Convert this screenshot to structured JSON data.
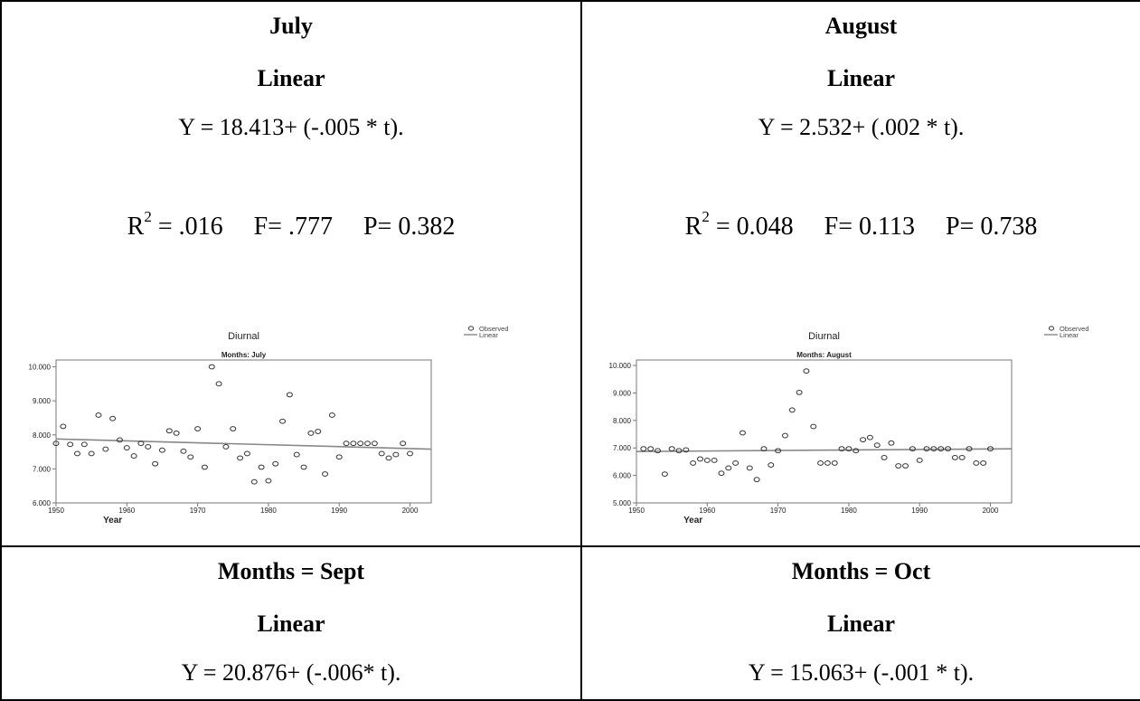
{
  "panels": [
    {
      "month": "July",
      "model": "Linear",
      "equation": "Y = 18.413+ (-.005 * t).",
      "r2_label": "R",
      "r2_sup": "2",
      "r2_value": " = .016",
      "f_stat": "F= .777",
      "p_value": "P= 0.382"
    },
    {
      "month": "August",
      "model": "Linear",
      "equation": "Y = 2.532+ (.002 * t).",
      "r2_label": "R",
      "r2_sup": "2",
      "r2_value": " = 0.048",
      "f_stat": "F= 0.113",
      "p_value": "P= 0.738"
    },
    {
      "month": "Months = Sept",
      "model": "Linear",
      "equation": "Y = 20.876+ (-.006* t)."
    },
    {
      "month": "Months = Oct",
      "model": "Linear",
      "equation": "Y = 15.063+ (-.001 * t)."
    }
  ],
  "chart_data": [
    {
      "type": "scatter",
      "title": "Diurnal",
      "subtitle": "Months: July",
      "xlabel": "Year",
      "ylabel": "",
      "xlim": [
        1950,
        2003
      ],
      "ylim": [
        6.0,
        10.2
      ],
      "xticks": [
        1950,
        1960,
        1970,
        1980,
        1990,
        2000
      ],
      "yticks": [
        6.0,
        7.0,
        8.0,
        9.0,
        10.0
      ],
      "ytick_labels": [
        "6.000",
        "7.000",
        "8.000",
        "9.000",
        "10.000"
      ],
      "legend": [
        "Observed",
        "Linear"
      ],
      "legend_position": "right",
      "grid": false,
      "color": "#555555",
      "fit_line": {
        "x": [
          1950,
          2003
        ],
        "y": [
          7.88,
          7.58
        ]
      },
      "series": [
        {
          "name": "Observed",
          "points": [
            [
              1950,
              7.75
            ],
            [
              1951,
              8.25
            ],
            [
              1952,
              7.72
            ],
            [
              1953,
              7.45
            ],
            [
              1954,
              7.72
            ],
            [
              1955,
              7.45
            ],
            [
              1956,
              8.58
            ],
            [
              1957,
              7.58
            ],
            [
              1958,
              8.48
            ],
            [
              1959,
              7.85
            ],
            [
              1960,
              7.62
            ],
            [
              1961,
              7.38
            ],
            [
              1962,
              7.75
            ],
            [
              1963,
              7.65
            ],
            [
              1964,
              7.15
            ],
            [
              1965,
              7.55
            ],
            [
              1966,
              8.12
            ],
            [
              1967,
              8.05
            ],
            [
              1968,
              7.52
            ],
            [
              1969,
              7.35
            ],
            [
              1970,
              8.18
            ],
            [
              1971,
              7.05
            ],
            [
              1972,
              10.0
            ],
            [
              1973,
              9.5
            ],
            [
              1974,
              7.65
            ],
            [
              1975,
              8.18
            ],
            [
              1976,
              7.32
            ],
            [
              1977,
              7.45
            ],
            [
              1978,
              6.62
            ],
            [
              1979,
              7.05
            ],
            [
              1980,
              6.65
            ],
            [
              1981,
              7.15
            ],
            [
              1982,
              8.4
            ],
            [
              1983,
              9.18
            ],
            [
              1984,
              7.42
            ],
            [
              1985,
              7.05
            ],
            [
              1986,
              8.05
            ],
            [
              1987,
              8.1
            ],
            [
              1988,
              6.85
            ],
            [
              1989,
              8.58
            ],
            [
              1990,
              7.35
            ],
            [
              1991,
              7.75
            ],
            [
              1992,
              7.75
            ],
            [
              1993,
              7.75
            ],
            [
              1994,
              7.75
            ],
            [
              1995,
              7.75
            ],
            [
              1996,
              7.45
            ],
            [
              1997,
              7.32
            ],
            [
              1998,
              7.42
            ],
            [
              1999,
              7.75
            ],
            [
              2000,
              7.45
            ]
          ]
        }
      ]
    },
    {
      "type": "scatter",
      "title": "Diurnal",
      "subtitle": "Months: August",
      "xlabel": "Year",
      "ylabel": "",
      "xlim": [
        1950,
        2003
      ],
      "ylim": [
        5.0,
        10.2
      ],
      "xticks": [
        1950,
        1960,
        1970,
        1980,
        1990,
        2000
      ],
      "yticks": [
        5.0,
        6.0,
        7.0,
        8.0,
        9.0,
        10.0
      ],
      "ytick_labels": [
        "5.000",
        "6.000",
        "7.000",
        "8.000",
        "9.000",
        "10.000"
      ],
      "legend": [
        "Observed",
        "Linear"
      ],
      "legend_position": "right",
      "grid": false,
      "color": "#555555",
      "fit_line": {
        "x": [
          1950,
          2003
        ],
        "y": [
          6.87,
          6.97
        ]
      },
      "series": [
        {
          "name": "Observed",
          "points": [
            [
              1951,
              6.97
            ],
            [
              1952,
              6.97
            ],
            [
              1953,
              6.9
            ],
            [
              1954,
              6.05
            ],
            [
              1955,
              6.97
            ],
            [
              1956,
              6.9
            ],
            [
              1957,
              6.93
            ],
            [
              1958,
              6.45
            ],
            [
              1959,
              6.6
            ],
            [
              1960,
              6.55
            ],
            [
              1961,
              6.55
            ],
            [
              1962,
              6.08
            ],
            [
              1963,
              6.27
            ],
            [
              1964,
              6.45
            ],
            [
              1965,
              7.55
            ],
            [
              1966,
              6.27
            ],
            [
              1967,
              5.85
            ],
            [
              1968,
              6.97
            ],
            [
              1969,
              6.38
            ],
            [
              1970,
              6.9
            ],
            [
              1971,
              7.45
            ],
            [
              1972,
              8.38
            ],
            [
              1973,
              9.02
            ],
            [
              1974,
              9.8
            ],
            [
              1975,
              7.78
            ],
            [
              1976,
              6.45
            ],
            [
              1977,
              6.45
            ],
            [
              1978,
              6.45
            ],
            [
              1979,
              6.97
            ],
            [
              1980,
              6.97
            ],
            [
              1981,
              6.9
            ],
            [
              1982,
              7.3
            ],
            [
              1983,
              7.38
            ],
            [
              1984,
              7.1
            ],
            [
              1985,
              6.65
            ],
            [
              1986,
              7.18
            ],
            [
              1987,
              6.35
            ],
            [
              1988,
              6.35
            ],
            [
              1989,
              6.97
            ],
            [
              1990,
              6.55
            ],
            [
              1991,
              6.97
            ],
            [
              1992,
              6.97
            ],
            [
              1993,
              6.97
            ],
            [
              1994,
              6.97
            ],
            [
              1995,
              6.65
            ],
            [
              1996,
              6.65
            ],
            [
              1997,
              6.97
            ],
            [
              1998,
              6.45
            ],
            [
              1999,
              6.45
            ],
            [
              2000,
              6.97
            ]
          ]
        }
      ]
    }
  ]
}
